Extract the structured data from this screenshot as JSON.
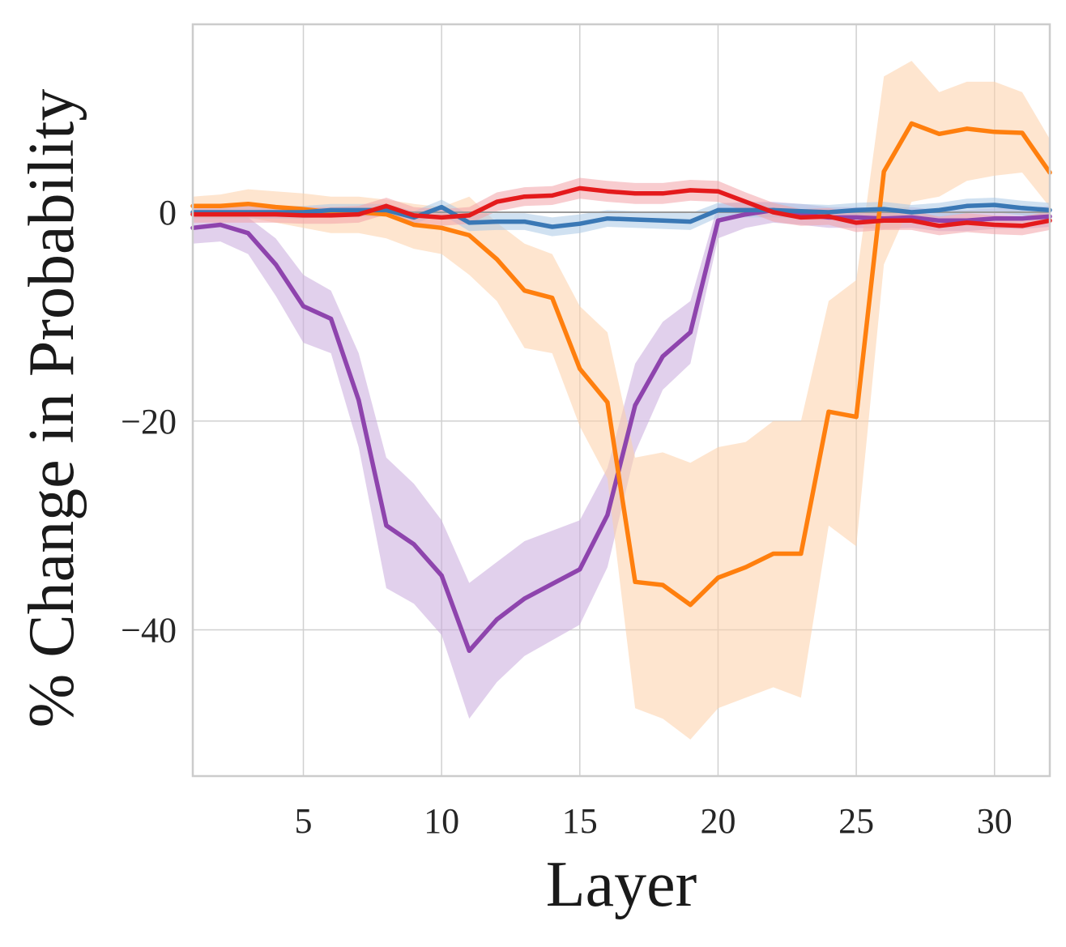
{
  "chart_data": {
    "type": "line",
    "title": "",
    "xlabel": "Layer",
    "ylabel": "% Change in Probability",
    "xlim": [
      1,
      32
    ],
    "ylim": [
      -54,
      18
    ],
    "xticks": [
      5,
      10,
      15,
      20,
      25,
      30
    ],
    "xtick_labels": [
      "5",
      "10",
      "15",
      "20",
      "25",
      "30"
    ],
    "yticks": [
      0,
      -20,
      -40
    ],
    "ytick_labels": [
      "0",
      "−20",
      "−40"
    ],
    "grid": true,
    "x": [
      1,
      2,
      3,
      4,
      5,
      6,
      7,
      8,
      9,
      10,
      11,
      12,
      13,
      14,
      15,
      16,
      17,
      18,
      19,
      20,
      21,
      22,
      23,
      24,
      25,
      26,
      27,
      28,
      29,
      30,
      31,
      32
    ],
    "series": [
      {
        "name": "purple",
        "color": "#8e44ad",
        "band_color": "#c9a9dd",
        "values": [
          -1.5,
          -1.2,
          -2.0,
          -5.0,
          -9.0,
          -10.2,
          -18.0,
          -30.0,
          -31.8,
          -34.8,
          -42.0,
          -39.0,
          -37.0,
          -35.6,
          -34.2,
          -29.0,
          -18.5,
          -13.8,
          -11.5,
          -0.8,
          -0.2,
          0.2,
          -0.2,
          -0.5,
          -0.5,
          -0.6,
          -0.5,
          -0.8,
          -0.8,
          -0.6,
          -0.6,
          -0.4
        ],
        "lower": [
          -3.0,
          -2.8,
          -4.0,
          -8.0,
          -12.5,
          -13.5,
          -22.5,
          -36.0,
          -37.5,
          -40.5,
          -48.5,
          -45.0,
          -42.5,
          -41.0,
          -39.5,
          -34.0,
          -23.0,
          -17.0,
          -14.5,
          -2.5,
          -1.5,
          -1.0,
          -1.2,
          -1.5,
          -1.5,
          -1.6,
          -1.5,
          -1.8,
          -1.8,
          -1.6,
          -1.6,
          -1.4
        ],
        "upper": [
          -0.3,
          0.0,
          -0.5,
          -2.5,
          -6.0,
          -7.5,
          -13.5,
          -23.5,
          -26.0,
          -29.5,
          -35.5,
          -33.5,
          -31.5,
          -30.5,
          -29.5,
          -24.5,
          -14.5,
          -10.5,
          -8.5,
          0.8,
          1.0,
          1.0,
          0.8,
          0.5,
          0.5,
          0.4,
          0.5,
          0.2,
          0.2,
          0.4,
          0.4,
          0.6
        ]
      },
      {
        "name": "orange",
        "color": "#ff7f0e",
        "band_color": "#fdd0a8",
        "values": [
          0.6,
          0.6,
          0.8,
          0.5,
          0.3,
          0.0,
          0.0,
          -0.2,
          -1.2,
          -1.5,
          -2.2,
          -4.5,
          -7.5,
          -8.2,
          -15.0,
          -18.2,
          -35.4,
          -35.7,
          -37.6,
          -35.0,
          -34.0,
          -32.7,
          -32.7,
          -19.1,
          -19.6,
          3.9,
          8.5,
          7.5,
          8.0,
          7.7,
          7.6,
          3.8
        ],
        "lower": [
          -0.5,
          -0.6,
          -0.5,
          -1.0,
          -1.5,
          -2.0,
          -2.0,
          -2.5,
          -3.5,
          -4.0,
          -6.0,
          -8.5,
          -13.0,
          -13.5,
          -20.5,
          -25.5,
          -47.5,
          -48.5,
          -50.5,
          -47.5,
          -46.5,
          -45.5,
          -46.5,
          -30.0,
          -32.0,
          -5.0,
          1.0,
          1.5,
          3.0,
          3.5,
          3.8,
          0.5
        ],
        "upper": [
          1.5,
          1.7,
          2.2,
          2.0,
          1.8,
          1.5,
          1.5,
          1.2,
          0.8,
          0.5,
          1.5,
          -1.0,
          -3.0,
          -4.0,
          -9.0,
          -11.5,
          -23.5,
          -23.0,
          -24.0,
          -22.5,
          -22.0,
          -20.0,
          -20.0,
          -8.5,
          -6.5,
          13.0,
          14.5,
          11.5,
          12.5,
          12.5,
          11.5,
          7.0
        ]
      },
      {
        "name": "blue",
        "color": "#3a78b5",
        "band_color": "#a9c8e6",
        "values": [
          0.0,
          0.0,
          0.0,
          0.0,
          0.0,
          0.2,
          0.2,
          0.2,
          -0.5,
          0.5,
          -1.0,
          -0.9,
          -0.9,
          -1.4,
          -1.1,
          -0.6,
          -0.7,
          -0.8,
          -0.9,
          0.2,
          0.2,
          0.2,
          0.1,
          0.0,
          0.2,
          0.3,
          0.0,
          0.2,
          0.6,
          0.7,
          0.4,
          0.2
        ],
        "lower": [
          -0.6,
          -0.6,
          -0.6,
          -0.6,
          -0.6,
          -0.4,
          -0.4,
          -0.4,
          -1.1,
          -0.2,
          -1.8,
          -1.7,
          -1.7,
          -2.3,
          -2.0,
          -1.4,
          -1.5,
          -1.6,
          -1.7,
          -0.5,
          -0.5,
          -0.5,
          -0.6,
          -0.7,
          -0.5,
          -0.4,
          -0.7,
          -0.5,
          -0.1,
          0.0,
          -0.3,
          -0.5
        ],
        "upper": [
          0.6,
          0.6,
          0.6,
          0.6,
          0.6,
          0.8,
          0.8,
          0.8,
          0.1,
          1.2,
          -0.2,
          -0.1,
          -0.1,
          -0.5,
          -0.2,
          0.2,
          0.1,
          0.0,
          -0.1,
          0.9,
          0.9,
          0.9,
          0.8,
          0.7,
          0.9,
          1.0,
          0.7,
          0.9,
          1.3,
          1.4,
          1.1,
          0.9
        ]
      },
      {
        "name": "red",
        "color": "#e41a1c",
        "band_color": "#f3a3a8",
        "values": [
          -0.2,
          -0.2,
          -0.2,
          -0.2,
          -0.3,
          -0.3,
          -0.2,
          0.6,
          -0.3,
          -0.5,
          -0.3,
          1.0,
          1.5,
          1.6,
          2.3,
          2.0,
          1.8,
          1.8,
          2.1,
          2.0,
          1.0,
          0.0,
          -0.5,
          -0.4,
          -1.0,
          -0.8,
          -0.8,
          -1.3,
          -1.0,
          -1.2,
          -1.3,
          -0.8
        ],
        "lower": [
          -1.0,
          -1.0,
          -1.0,
          -1.0,
          -1.1,
          -1.1,
          -1.0,
          -0.2,
          -1.1,
          -1.3,
          -1.1,
          0.1,
          0.6,
          0.7,
          1.3,
          1.0,
          0.8,
          0.8,
          1.1,
          1.0,
          0.1,
          -0.9,
          -1.3,
          -1.2,
          -1.9,
          -1.7,
          -1.7,
          -2.2,
          -1.9,
          -2.1,
          -2.2,
          -1.7
        ],
        "upper": [
          0.6,
          0.6,
          0.6,
          0.6,
          0.5,
          0.5,
          0.6,
          1.4,
          0.5,
          0.3,
          0.5,
          1.9,
          2.4,
          2.5,
          3.3,
          3.0,
          2.8,
          2.8,
          3.1,
          3.0,
          1.9,
          0.9,
          0.3,
          0.4,
          -0.1,
          0.1,
          0.1,
          -0.4,
          -0.1,
          -0.3,
          -0.4,
          0.1
        ]
      }
    ]
  }
}
